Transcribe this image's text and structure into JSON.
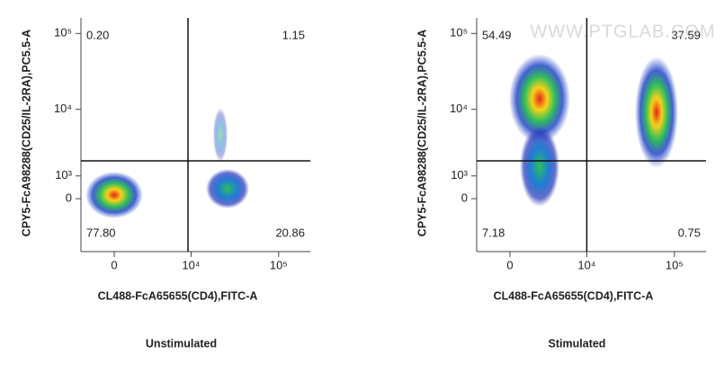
{
  "chart_data": [
    {
      "type": "quadrant",
      "title": "Unstimulated",
      "x_label": "CL488-FcA65655(CD4),FITC-A",
      "y_label": "CPY5-FcA98288(CD25/IL-2RA),PC5.5-A",
      "xlim": [
        -2700,
        228000
      ],
      "ylim": [
        -3200,
        160000
      ],
      "xticks": [
        0,
        {
          "value": 10000,
          "label": "10⁴"
        },
        {
          "value": 100000,
          "label": "10⁵"
        }
      ],
      "yticks": [
        0,
        {
          "value": 1000,
          "label": "10³"
        },
        {
          "value": 10000,
          "label": "10⁴"
        },
        {
          "value": 100000,
          "label": "10⁵"
        }
      ],
      "gate": {
        "x": 9200,
        "y": 1900
      },
      "values": [
        0.2,
        1.15,
        77.8,
        20.86
      ],
      "value_labels": [
        "0.20",
        "1.15",
        "77.80",
        "20.86"
      ]
    },
    {
      "type": "quadrant",
      "title": "Stimulated",
      "x_label": "CL488-FcA65655(CD4),FITC-A",
      "y_label": "CPY5-FcA98288(CD25/IL-2RA),PC5.5-A",
      "watermark": "WWW.PTGLAB.COM",
      "xlim": [
        -2700,
        228000
      ],
      "ylim": [
        -3200,
        160000
      ],
      "xticks": [
        0,
        {
          "value": 10000,
          "label": "10⁴"
        },
        {
          "value": 100000,
          "label": "10⁵"
        }
      ],
      "yticks": [
        0,
        {
          "value": 1000,
          "label": "10³"
        },
        {
          "value": 10000,
          "label": "10⁴"
        },
        {
          "value": 100000,
          "label": "10⁵"
        }
      ],
      "gate": {
        "x": 10000,
        "y": 1900
      },
      "values": [
        54.49,
        37.59,
        7.18,
        0.75
      ],
      "value_labels": [
        "54.49",
        "37.59",
        "7.18",
        "0.75"
      ]
    }
  ]
}
